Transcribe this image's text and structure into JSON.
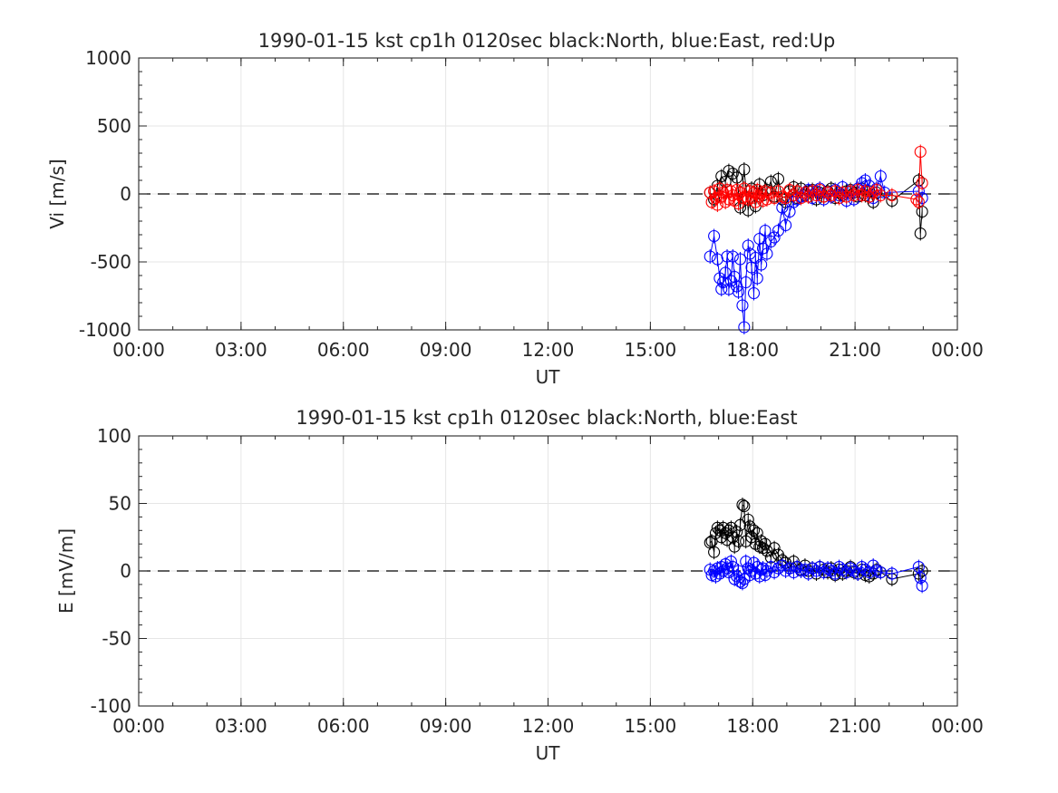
{
  "chart_data": [
    {
      "type": "scatter",
      "title": "1990-01-15 kst cp1h 0120sec black:North, blue:East, red:Up",
      "xlabel": "UT",
      "ylabel": "Vi [m/s]",
      "xlim": [
        "00:00",
        "24:00"
      ],
      "ylim": [
        -1000,
        1000
      ],
      "xticks": [
        "00:00",
        "03:00",
        "06:00",
        "09:00",
        "12:00",
        "15:00",
        "18:00",
        "21:00",
        "00:00"
      ],
      "yticks": [
        "1000",
        "500",
        "0",
        "-500",
        "-1000"
      ],
      "grid": true,
      "zero_line": "dashed",
      "series": [
        {
          "name": "North",
          "color": "#000000",
          "x": [
            "16:45",
            "16:52",
            "16:58",
            "17:05",
            "17:12",
            "17:18",
            "17:25",
            "17:32",
            "17:38",
            "17:45",
            "17:52",
            "17:58",
            "18:05",
            "18:12",
            "18:18",
            "18:25",
            "18:32",
            "18:38",
            "18:45",
            "18:52",
            "18:58",
            "19:05",
            "19:12",
            "19:18",
            "19:25",
            "19:32",
            "19:38",
            "19:45",
            "19:52",
            "19:58",
            "20:05",
            "20:12",
            "20:18",
            "20:25",
            "20:32",
            "20:38",
            "20:45",
            "20:52",
            "20:58",
            "21:05",
            "21:12",
            "21:18",
            "21:25",
            "21:32",
            "21:38",
            "22:05",
            "22:52",
            "22:55",
            "22:58"
          ],
          "y": [
            10,
            -40,
            60,
            130,
            90,
            170,
            150,
            120,
            -100,
            180,
            -120,
            40,
            -90,
            70,
            -10,
            30,
            90,
            -20,
            110,
            -40,
            -60,
            20,
            50,
            -30,
            40,
            -10,
            20,
            30,
            -40,
            10,
            -20,
            20,
            40,
            -30,
            10,
            -10,
            20,
            30,
            10,
            -20,
            40,
            -10,
            20,
            -60,
            10,
            -50,
            100,
            -290,
            -130
          ]
        },
        {
          "name": "East",
          "color": "#0000ff",
          "x": [
            "16:45",
            "16:52",
            "16:58",
            "17:02",
            "17:05",
            "17:08",
            "17:12",
            "17:15",
            "17:18",
            "17:22",
            "17:25",
            "17:28",
            "17:32",
            "17:35",
            "17:38",
            "17:42",
            "17:45",
            "17:48",
            "17:52",
            "17:55",
            "17:58",
            "18:02",
            "18:05",
            "18:08",
            "18:12",
            "18:15",
            "18:18",
            "18:22",
            "18:25",
            "18:32",
            "18:38",
            "18:45",
            "18:52",
            "18:58",
            "19:05",
            "19:12",
            "19:18",
            "19:25",
            "19:32",
            "19:38",
            "19:45",
            "19:52",
            "19:58",
            "20:05",
            "20:12",
            "20:18",
            "20:25",
            "20:32",
            "20:38",
            "20:45",
            "20:52",
            "20:58",
            "21:05",
            "21:12",
            "21:18",
            "21:25",
            "21:32",
            "21:38",
            "21:45",
            "21:52",
            "22:52",
            "22:58"
          ],
          "y": [
            -460,
            -310,
            -480,
            -620,
            -700,
            -650,
            -580,
            -460,
            -700,
            -640,
            -460,
            -610,
            -680,
            -720,
            -480,
            -820,
            -980,
            -650,
            -380,
            -440,
            -540,
            -730,
            -470,
            -620,
            -330,
            -520,
            -400,
            -270,
            -440,
            -350,
            -320,
            -270,
            -100,
            -230,
            -130,
            -60,
            -40,
            -20,
            10,
            30,
            -30,
            20,
            40,
            -40,
            10,
            -20,
            30,
            -10,
            50,
            -50,
            20,
            -40,
            40,
            80,
            100,
            60,
            -30,
            40,
            130,
            10,
            20,
            -30
          ]
        },
        {
          "name": "Up",
          "color": "#ff0000",
          "x": [
            "16:45",
            "16:48",
            "16:52",
            "16:55",
            "16:58",
            "17:02",
            "17:05",
            "17:08",
            "17:12",
            "17:15",
            "17:18",
            "17:22",
            "17:25",
            "17:28",
            "17:32",
            "17:35",
            "17:38",
            "17:42",
            "17:45",
            "17:48",
            "17:52",
            "17:55",
            "17:58",
            "18:02",
            "18:05",
            "18:08",
            "18:12",
            "18:15",
            "18:18",
            "18:22",
            "18:25",
            "18:32",
            "18:38",
            "18:45",
            "18:52",
            "18:58",
            "19:05",
            "19:12",
            "19:18",
            "19:25",
            "19:32",
            "19:38",
            "19:45",
            "19:52",
            "19:58",
            "20:05",
            "20:12",
            "20:18",
            "20:25",
            "20:32",
            "20:38",
            "20:45",
            "20:52",
            "20:58",
            "21:05",
            "21:12",
            "21:18",
            "21:25",
            "21:32",
            "21:38",
            "21:45",
            "22:05",
            "22:48",
            "22:52",
            "22:55",
            "22:58"
          ],
          "y": [
            10,
            -60,
            20,
            -30,
            -80,
            40,
            -20,
            10,
            -60,
            30,
            -40,
            20,
            -10,
            -50,
            30,
            -70,
            10,
            -30,
            40,
            -20,
            -40,
            20,
            -30,
            10,
            -60,
            30,
            -20,
            10,
            -50,
            20,
            -40,
            10,
            -30,
            20,
            -20,
            -30,
            30,
            -10,
            20,
            -30,
            10,
            -20,
            20,
            -10,
            30,
            -20,
            10,
            -10,
            20,
            -30,
            10,
            -20,
            20,
            -10,
            30,
            -10,
            20,
            -20,
            10,
            30,
            -10,
            -10,
            -40,
            -60,
            310,
            80
          ]
        }
      ]
    },
    {
      "type": "scatter",
      "title": "1990-01-15 kst cp1h 0120sec black:North, blue:East",
      "xlabel": "UT",
      "ylabel": "E [mV/m]",
      "xlim": [
        "00:00",
        "24:00"
      ],
      "ylim": [
        -100,
        100
      ],
      "xticks": [
        "00:00",
        "03:00",
        "06:00",
        "09:00",
        "12:00",
        "15:00",
        "18:00",
        "21:00",
        "00:00"
      ],
      "yticks": [
        "100",
        "50",
        "0",
        "-50",
        "-100"
      ],
      "grid": true,
      "zero_line": "dashed",
      "series": [
        {
          "name": "North",
          "color": "#000000",
          "x": [
            "16:45",
            "16:48",
            "16:52",
            "16:55",
            "16:58",
            "17:02",
            "17:05",
            "17:08",
            "17:12",
            "17:15",
            "17:18",
            "17:22",
            "17:25",
            "17:28",
            "17:32",
            "17:35",
            "17:38",
            "17:42",
            "17:45",
            "17:48",
            "17:52",
            "17:55",
            "17:58",
            "18:02",
            "18:05",
            "18:08",
            "18:12",
            "18:15",
            "18:18",
            "18:22",
            "18:25",
            "18:32",
            "18:38",
            "18:45",
            "18:52",
            "18:58",
            "19:05",
            "19:12",
            "19:18",
            "19:25",
            "19:32",
            "19:38",
            "19:45",
            "19:52",
            "19:58",
            "20:05",
            "20:12",
            "20:18",
            "20:25",
            "20:32",
            "20:38",
            "20:45",
            "20:52",
            "20:58",
            "21:05",
            "21:12",
            "21:18",
            "21:25",
            "21:32",
            "21:38",
            "21:45",
            "22:05",
            "22:52",
            "22:58"
          ],
          "y": [
            21,
            22,
            14,
            28,
            32,
            30,
            25,
            32,
            28,
            23,
            30,
            32,
            25,
            18,
            29,
            22,
            34,
            49,
            48,
            22,
            38,
            33,
            25,
            30,
            20,
            28,
            18,
            22,
            17,
            20,
            15,
            10,
            17,
            12,
            8,
            6,
            2,
            7,
            3,
            1,
            4,
            0,
            2,
            -2,
            3,
            1,
            -1,
            2,
            -3,
            1,
            -2,
            0,
            3,
            -1,
            -2,
            1,
            -3,
            -4,
            -2,
            1,
            -1,
            -6,
            -2,
            0
          ]
        },
        {
          "name": "East",
          "color": "#0000ff",
          "x": [
            "16:45",
            "16:48",
            "16:52",
            "16:55",
            "16:58",
            "17:02",
            "17:05",
            "17:08",
            "17:12",
            "17:15",
            "17:18",
            "17:22",
            "17:25",
            "17:28",
            "17:32",
            "17:35",
            "17:38",
            "17:42",
            "17:45",
            "17:48",
            "17:52",
            "17:55",
            "17:58",
            "18:02",
            "18:05",
            "18:08",
            "18:12",
            "18:15",
            "18:18",
            "18:22",
            "18:25",
            "18:32",
            "18:38",
            "18:45",
            "18:52",
            "18:58",
            "19:05",
            "19:12",
            "19:18",
            "19:25",
            "19:32",
            "19:38",
            "19:45",
            "19:52",
            "19:58",
            "20:05",
            "20:12",
            "20:18",
            "20:25",
            "20:32",
            "20:38",
            "20:45",
            "20:52",
            "20:58",
            "21:05",
            "21:12",
            "21:18",
            "21:25",
            "21:32",
            "21:38",
            "21:45",
            "22:05",
            "22:52",
            "22:55",
            "22:58"
          ],
          "y": [
            1,
            -3,
            0,
            -4,
            2,
            -2,
            3,
            0,
            5,
            2,
            -1,
            7,
            3,
            -6,
            -4,
            0,
            -8,
            -9,
            -6,
            7,
            2,
            -3,
            0,
            6,
            -2,
            3,
            -4,
            1,
            2,
            -3,
            0,
            3,
            -1,
            2,
            4,
            0,
            2,
            -1,
            3,
            0,
            1,
            -2,
            2,
            0,
            3,
            -1,
            2,
            0,
            -2,
            3,
            1,
            -1,
            2,
            0,
            -2,
            3,
            1,
            -1,
            4,
            0,
            -1,
            -2,
            3,
            -5,
            -11
          ]
        }
      ]
    }
  ]
}
